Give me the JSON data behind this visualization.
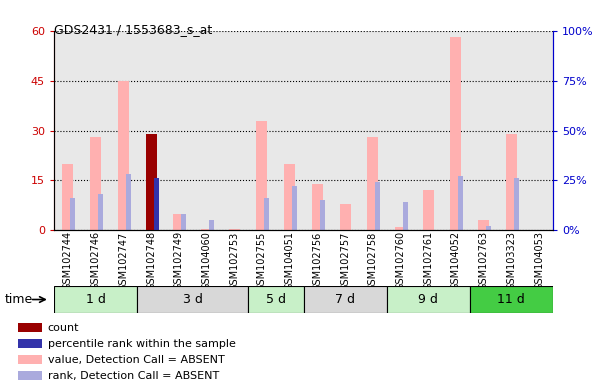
{
  "title": "GDS2431 / 1553683_s_at",
  "samples": [
    "GSM102744",
    "GSM102746",
    "GSM102747",
    "GSM102748",
    "GSM102749",
    "GSM104060",
    "GSM102753",
    "GSM102755",
    "GSM104051",
    "GSM102756",
    "GSM102757",
    "GSM102758",
    "GSM102760",
    "GSM102761",
    "GSM104052",
    "GSM102763",
    "GSM103323",
    "GSM104053"
  ],
  "time_groups": [
    {
      "label": "1 d",
      "start": 0,
      "end": 3,
      "color": "#c8f0c8"
    },
    {
      "label": "3 d",
      "start": 3,
      "end": 7,
      "color": "#d8d8d8"
    },
    {
      "label": "5 d",
      "start": 7,
      "end": 9,
      "color": "#c8f0c8"
    },
    {
      "label": "7 d",
      "start": 9,
      "end": 12,
      "color": "#d8d8d8"
    },
    {
      "label": "9 d",
      "start": 12,
      "end": 15,
      "color": "#c8f0c8"
    },
    {
      "label": "11 d",
      "start": 15,
      "end": 18,
      "color": "#44cc44"
    }
  ],
  "pink_bars": [
    20,
    28,
    45,
    7,
    5,
    0.5,
    0.5,
    33,
    20,
    14,
    8,
    28,
    1,
    12,
    58,
    3,
    29
  ],
  "rank_bars": [
    16,
    18,
    28,
    0,
    8,
    5,
    0,
    16,
    22,
    15,
    0,
    24,
    14,
    0,
    27,
    2,
    26
  ],
  "count_bar_idx": 3,
  "count_value": 29,
  "percentile_bar_idx": 3,
  "percentile_value": 26,
  "ylim_left": [
    0,
    60
  ],
  "ylim_right": [
    0,
    100
  ],
  "left_ticks": [
    0,
    15,
    30,
    45,
    60
  ],
  "right_ticks": [
    0,
    25,
    50,
    75,
    100
  ],
  "left_tick_labels": [
    "0",
    "15",
    "30",
    "45",
    "60"
  ],
  "right_tick_labels": [
    "0%",
    "25%",
    "50%",
    "75%",
    "100%"
  ],
  "left_color": "#cc0000",
  "right_color": "#0000cc",
  "pink_color": "#ffb0b0",
  "rank_color": "#aaaadd",
  "count_color": "#990000",
  "percentile_color": "#3333aa",
  "bg_color": "#e8e8e8",
  "legend": [
    {
      "color": "#990000",
      "label": "count"
    },
    {
      "color": "#3333aa",
      "label": "percentile rank within the sample"
    },
    {
      "color": "#ffb0b0",
      "label": "value, Detection Call = ABSENT"
    },
    {
      "color": "#aaaadd",
      "label": "rank, Detection Call = ABSENT"
    }
  ],
  "time_label": "time"
}
